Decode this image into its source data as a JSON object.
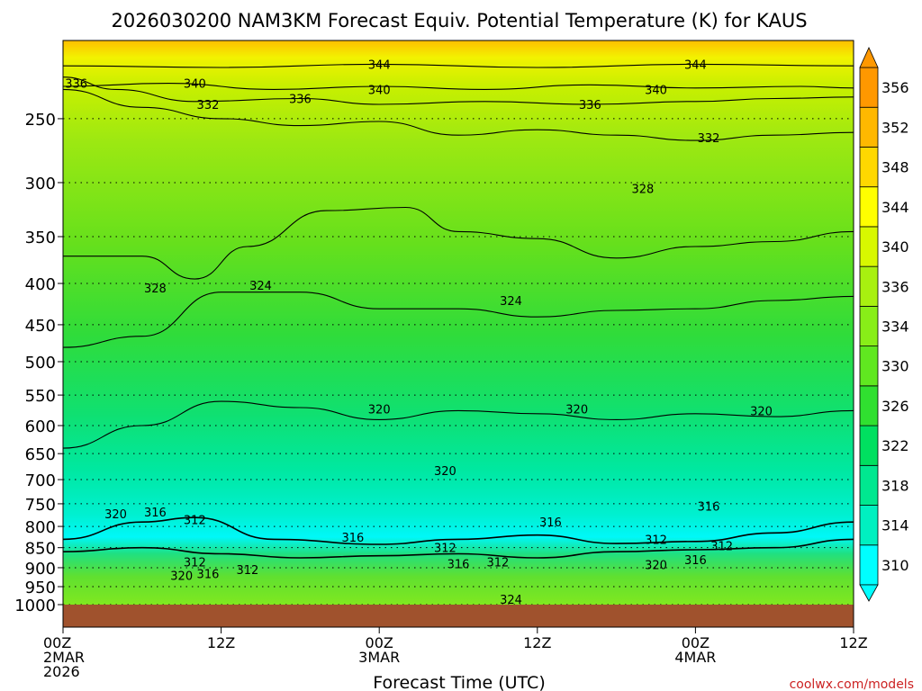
{
  "chart_data": {
    "type": "contour",
    "title": "2026030200 NAM3KM Forecast Equiv. Potential Temperature (K) for KAUS",
    "xlabel": "Forecast Time (UTC)",
    "ylabel": "",
    "credit": "coolwx.com/models",
    "y_axis": {
      "scale": "pressure (log)",
      "range": [
        1000,
        200
      ],
      "ticks": [
        250,
        300,
        350,
        400,
        450,
        500,
        550,
        600,
        650,
        700,
        750,
        800,
        850,
        900,
        950,
        1000
      ]
    },
    "x_axis": {
      "range_hours": [
        0,
        60
      ],
      "ticks": [
        {
          "hour": 0,
          "lines": [
            "00Z",
            "2MAR",
            "2026"
          ]
        },
        {
          "hour": 12,
          "lines": [
            "12Z"
          ]
        },
        {
          "hour": 24,
          "lines": [
            "00Z",
            "3MAR"
          ]
        },
        {
          "hour": 36,
          "lines": [
            "12Z"
          ]
        },
        {
          "hour": 48,
          "lines": [
            "00Z",
            "4MAR"
          ]
        },
        {
          "hour": 60,
          "lines": [
            "12Z"
          ]
        }
      ]
    },
    "colorbar": {
      "labels": [
        310,
        314,
        318,
        322,
        326,
        330,
        334,
        336,
        340,
        344,
        348,
        352,
        356
      ],
      "colors": [
        "#00ffff",
        "#00f0c0",
        "#00e890",
        "#00e060",
        "#30e030",
        "#60e820",
        "#88ee18",
        "#a8f010",
        "#d8f800",
        "#ffff00",
        "#ffd800",
        "#ffb800",
        "#ff9800"
      ]
    },
    "contour_levels": [
      312,
      316,
      320,
      324,
      328,
      332,
      336,
      340,
      344
    ],
    "contours": [
      {
        "level": 344,
        "points": [
          [
            0,
            215
          ],
          [
            12,
            216
          ],
          [
            24,
            214
          ],
          [
            36,
            216
          ],
          [
            48,
            214
          ],
          [
            60,
            215
          ]
        ],
        "labels": [
          {
            "hour": 24,
            "p": 214,
            "text": "344"
          },
          {
            "hour": 48,
            "p": 214,
            "text": "344"
          }
        ]
      },
      {
        "level": 340,
        "points": [
          [
            0,
            228
          ],
          [
            8,
            226
          ],
          [
            16,
            230
          ],
          [
            24,
            228
          ],
          [
            32,
            230
          ],
          [
            40,
            227
          ],
          [
            48,
            229
          ],
          [
            56,
            228
          ],
          [
            60,
            229
          ]
        ],
        "labels": [
          {
            "hour": 10,
            "p": 226,
            "text": "340"
          },
          {
            "hour": 24,
            "p": 230,
            "text": "340"
          },
          {
            "hour": 45,
            "p": 230,
            "text": "340"
          }
        ]
      },
      {
        "level": 336,
        "points": [
          [
            0,
            222
          ],
          [
            4,
            230
          ],
          [
            10,
            238
          ],
          [
            18,
            236
          ],
          [
            24,
            240
          ],
          [
            32,
            238
          ],
          [
            40,
            240
          ],
          [
            48,
            238
          ],
          [
            54,
            236
          ],
          [
            60,
            235
          ]
        ],
        "labels": [
          {
            "hour": 1,
            "p": 226,
            "text": "336"
          },
          {
            "hour": 18,
            "p": 236,
            "text": "336"
          },
          {
            "hour": 40,
            "p": 240,
            "text": "336"
          }
        ]
      },
      {
        "level": 332,
        "points": [
          [
            0,
            230
          ],
          [
            6,
            242
          ],
          [
            12,
            250
          ],
          [
            18,
            255
          ],
          [
            24,
            252
          ],
          [
            30,
            262
          ],
          [
            36,
            258
          ],
          [
            42,
            262
          ],
          [
            48,
            266
          ],
          [
            54,
            262
          ],
          [
            60,
            260
          ]
        ],
        "labels": [
          {
            "hour": 11,
            "p": 240,
            "text": "332"
          },
          {
            "hour": 49,
            "p": 264,
            "text": "332"
          }
        ]
      },
      {
        "level": 328,
        "points": [
          [
            0,
            370
          ],
          [
            6,
            370
          ],
          [
            10,
            395
          ],
          [
            14,
            360
          ],
          [
            20,
            325
          ],
          [
            26,
            322
          ],
          [
            30,
            345
          ],
          [
            36,
            352
          ],
          [
            42,
            372
          ],
          [
            48,
            360
          ],
          [
            54,
            355
          ],
          [
            60,
            345
          ]
        ],
        "labels": [
          {
            "hour": 7,
            "p": 405,
            "text": "328"
          },
          {
            "hour": 44,
            "p": 305,
            "text": "328"
          }
        ]
      },
      {
        "level": 324,
        "points": [
          [
            0,
            480
          ],
          [
            6,
            465
          ],
          [
            12,
            410
          ],
          [
            18,
            410
          ],
          [
            24,
            430
          ],
          [
            30,
            430
          ],
          [
            36,
            440
          ],
          [
            42,
            432
          ],
          [
            48,
            430
          ],
          [
            54,
            420
          ],
          [
            60,
            415
          ]
        ],
        "labels": [
          {
            "hour": 15,
            "p": 402,
            "text": "324"
          },
          {
            "hour": 34,
            "p": 420,
            "text": "324"
          },
          {
            "hour": 34,
            "p": 985,
            "text": "324"
          }
        ]
      },
      {
        "level": 320,
        "points": [
          [
            0,
            640
          ],
          [
            6,
            600
          ],
          [
            12,
            560
          ],
          [
            18,
            570
          ],
          [
            24,
            590
          ],
          [
            30,
            575
          ],
          [
            36,
            580
          ],
          [
            42,
            590
          ],
          [
            48,
            580
          ],
          [
            54,
            585
          ],
          [
            60,
            575
          ]
        ],
        "labels": [
          {
            "hour": 24,
            "p": 572,
            "text": "320"
          },
          {
            "hour": 39,
            "p": 572,
            "text": "320"
          },
          {
            "hour": 53,
            "p": 575,
            "text": "320"
          },
          {
            "hour": 4,
            "p": 772,
            "text": "320"
          },
          {
            "hour": 29,
            "p": 682,
            "text": "320"
          },
          {
            "hour": 9,
            "p": 920,
            "text": "320"
          },
          {
            "hour": 45,
            "p": 892,
            "text": "320"
          }
        ]
      },
      {
        "level": 316,
        "points": [
          [
            0,
            830
          ],
          [
            6,
            790
          ],
          [
            10,
            780
          ],
          [
            16,
            830
          ],
          [
            24,
            842
          ],
          [
            30,
            830
          ],
          [
            36,
            820
          ],
          [
            42,
            840
          ],
          [
            48,
            835
          ],
          [
            54,
            815
          ],
          [
            60,
            790
          ]
        ],
        "labels": [
          {
            "hour": 7,
            "p": 768,
            "text": "316"
          },
          {
            "hour": 22,
            "p": 825,
            "text": "316"
          },
          {
            "hour": 37,
            "p": 790,
            "text": "316"
          },
          {
            "hour": 49,
            "p": 755,
            "text": "316"
          },
          {
            "hour": 11,
            "p": 915,
            "text": "316"
          },
          {
            "hour": 30,
            "p": 890,
            "text": "316"
          },
          {
            "hour": 48,
            "p": 880,
            "text": "316"
          }
        ]
      },
      {
        "level": 312,
        "points": [
          [
            0,
            860
          ],
          [
            6,
            850
          ],
          [
            12,
            865
          ],
          [
            18,
            875
          ],
          [
            24,
            870
          ],
          [
            30,
            865
          ],
          [
            36,
            875
          ],
          [
            42,
            860
          ],
          [
            48,
            855
          ],
          [
            54,
            850
          ],
          [
            60,
            830
          ]
        ],
        "labels": [
          {
            "hour": 10,
            "p": 785,
            "text": "312"
          },
          {
            "hour": 29,
            "p": 850,
            "text": "312"
          },
          {
            "hour": 45,
            "p": 830,
            "text": "312"
          },
          {
            "hour": 50,
            "p": 845,
            "text": "312"
          },
          {
            "hour": 10,
            "p": 885,
            "text": "312"
          },
          {
            "hour": 14,
            "p": 905,
            "text": "312"
          },
          {
            "hour": 33,
            "p": 885,
            "text": "312"
          }
        ]
      }
    ],
    "ground_below_hpa": 985
  }
}
